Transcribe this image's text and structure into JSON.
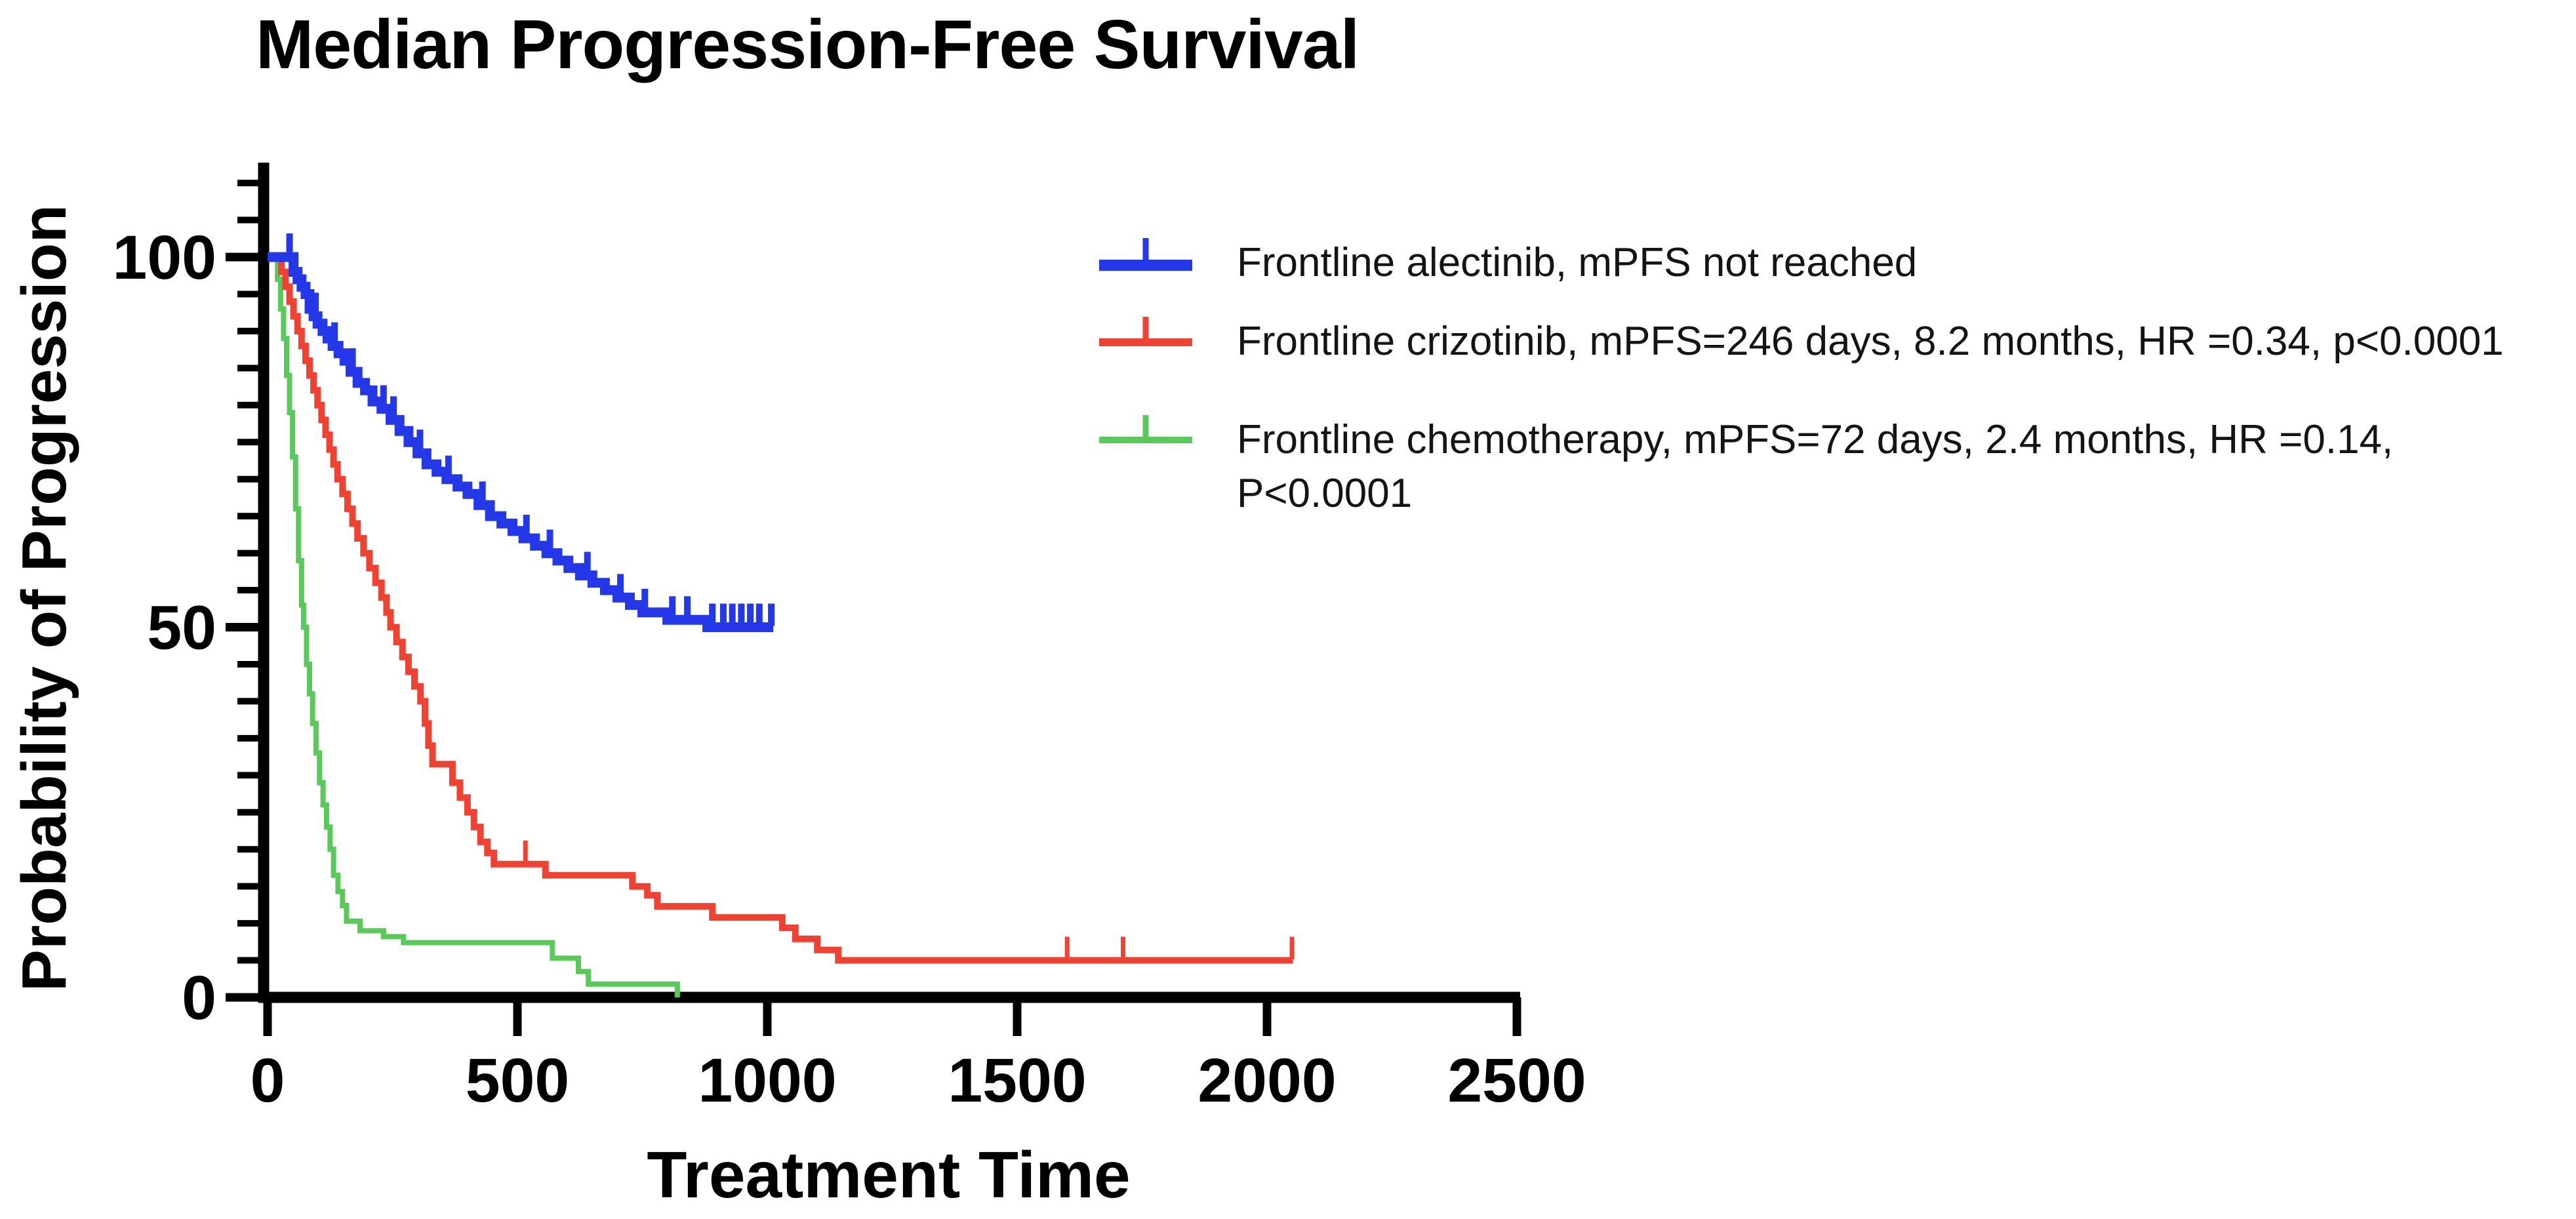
{
  "page": {
    "title": "Median Progression-Free Survival"
  },
  "chart_data": {
    "type": "line",
    "subtype": "kaplan-meier-step",
    "title": "Median Progression-Free Survival",
    "xlabel": "Treatment Time",
    "ylabel": "Probability of Progression",
    "xlim": [
      0,
      2500
    ],
    "ylim": [
      0,
      100
    ],
    "x_ticks": [
      0,
      500,
      1000,
      1500,
      2000,
      2500
    ],
    "y_ticks": [
      0,
      50,
      100
    ],
    "y_minor_tick_step": 5,
    "grid": false,
    "legend_position": "upper-right",
    "axis_color": "#000000",
    "background_color": "#ffffff",
    "series": [
      {
        "name": "Frontline alectinib",
        "legend_label": "Frontline alectinib, mPFS not reached",
        "median_note": "mPFS not reached",
        "color": "#2438e8",
        "line_width": 15,
        "steps": [
          [
            0,
            100
          ],
          [
            52,
            98
          ],
          [
            60,
            97
          ],
          [
            68,
            96
          ],
          [
            76,
            95
          ],
          [
            84,
            93
          ],
          [
            92,
            92
          ],
          [
            100,
            91
          ],
          [
            110,
            90
          ],
          [
            120,
            89
          ],
          [
            130,
            88
          ],
          [
            142,
            87
          ],
          [
            154,
            86
          ],
          [
            166,
            84.5
          ],
          [
            180,
            83
          ],
          [
            195,
            82
          ],
          [
            210,
            80.5
          ],
          [
            228,
            79.5
          ],
          [
            246,
            78
          ],
          [
            264,
            76.5
          ],
          [
            282,
            75
          ],
          [
            300,
            73.5
          ],
          [
            318,
            72
          ],
          [
            338,
            71
          ],
          [
            358,
            70
          ],
          [
            380,
            69
          ],
          [
            400,
            68
          ],
          [
            422,
            66.5
          ],
          [
            445,
            65
          ],
          [
            468,
            64
          ],
          [
            490,
            63
          ],
          [
            512,
            62
          ],
          [
            535,
            61
          ],
          [
            558,
            60
          ],
          [
            580,
            59
          ],
          [
            602,
            58
          ],
          [
            625,
            57
          ],
          [
            650,
            56
          ],
          [
            675,
            55
          ],
          [
            700,
            54
          ],
          [
            725,
            53
          ],
          [
            750,
            52
          ],
          [
            800,
            51
          ],
          [
            880,
            50
          ],
          [
            1012,
            50
          ]
        ],
        "censor_ticks": [
          [
            44,
            100
          ],
          [
            96,
            92
          ],
          [
            134,
            88
          ],
          [
            170,
            84.5
          ],
          [
            232,
            79.5
          ],
          [
            252,
            78
          ],
          [
            305,
            73.5
          ],
          [
            362,
            70
          ],
          [
            430,
            66.5
          ],
          [
            518,
            62
          ],
          [
            565,
            60
          ],
          [
            640,
            57
          ],
          [
            706,
            54
          ],
          [
            755,
            52
          ],
          [
            810,
            51
          ],
          [
            840,
            51
          ],
          [
            890,
            50
          ],
          [
            912,
            50
          ],
          [
            930,
            50
          ],
          [
            948,
            50
          ],
          [
            966,
            50
          ],
          [
            984,
            50
          ],
          [
            1008,
            50
          ]
        ]
      },
      {
        "name": "Frontline crizotinib",
        "legend_label": "Frontline crizotinib, mPFS=246 days, 8.2 months, HR =0.34, p<0.0001",
        "median_days": 246,
        "median_months": 8.2,
        "hazard_ratio": 0.34,
        "p_value": "p<0.0001",
        "color": "#ee4233",
        "line_width": 10,
        "steps": [
          [
            0,
            100
          ],
          [
            28,
            98
          ],
          [
            36,
            96
          ],
          [
            44,
            94
          ],
          [
            52,
            92
          ],
          [
            60,
            90
          ],
          [
            68,
            88
          ],
          [
            76,
            86
          ],
          [
            84,
            84
          ],
          [
            92,
            82
          ],
          [
            100,
            80
          ],
          [
            108,
            78
          ],
          [
            116,
            76
          ],
          [
            124,
            74
          ],
          [
            132,
            72
          ],
          [
            140,
            70
          ],
          [
            150,
            68
          ],
          [
            160,
            66
          ],
          [
            170,
            64
          ],
          [
            180,
            62
          ],
          [
            192,
            60
          ],
          [
            204,
            58
          ],
          [
            216,
            56
          ],
          [
            228,
            54
          ],
          [
            238,
            52
          ],
          [
            246,
            50
          ],
          [
            258,
            48
          ],
          [
            270,
            46
          ],
          [
            282,
            44
          ],
          [
            294,
            42
          ],
          [
            306,
            40
          ],
          [
            315,
            37
          ],
          [
            322,
            34
          ],
          [
            330,
            31.5
          ],
          [
            370,
            29
          ],
          [
            385,
            27
          ],
          [
            400,
            25
          ],
          [
            413,
            23
          ],
          [
            426,
            21
          ],
          [
            440,
            19.5
          ],
          [
            453,
            18
          ],
          [
            556,
            16.5
          ],
          [
            730,
            15
          ],
          [
            760,
            13.8
          ],
          [
            780,
            12.3
          ],
          [
            890,
            10.8
          ],
          [
            1030,
            9.4
          ],
          [
            1056,
            7.9
          ],
          [
            1100,
            6.4
          ],
          [
            1142,
            5
          ],
          [
            2052,
            5
          ]
        ],
        "censor_ticks": [
          [
            516,
            18
          ],
          [
            1600,
            5
          ],
          [
            1712,
            5
          ],
          [
            2050,
            5
          ]
        ]
      },
      {
        "name": "Frontline chemotherapy",
        "legend_label": "Frontline chemotherapy, mPFS=72 days, 2.4 months, HR =0.14,",
        "legend_label_line2": "P<0.0001",
        "median_days": 72,
        "median_months": 2.4,
        "hazard_ratio": 0.14,
        "p_value": "P<0.0001",
        "color": "#5bc85c",
        "line_width": 8,
        "steps": [
          [
            0,
            100
          ],
          [
            20,
            97
          ],
          [
            26,
            93
          ],
          [
            32,
            89
          ],
          [
            38,
            84
          ],
          [
            44,
            79
          ],
          [
            50,
            73
          ],
          [
            56,
            66
          ],
          [
            62,
            59
          ],
          [
            68,
            53
          ],
          [
            72,
            50
          ],
          [
            78,
            45
          ],
          [
            84,
            41
          ],
          [
            90,
            37
          ],
          [
            97,
            33
          ],
          [
            104,
            29
          ],
          [
            111,
            26
          ],
          [
            118,
            23
          ],
          [
            125,
            20
          ],
          [
            132,
            16.5
          ],
          [
            141,
            14.3
          ],
          [
            150,
            12.4
          ],
          [
            158,
            10.3
          ],
          [
            185,
            9
          ],
          [
            232,
            8.2
          ],
          [
            272,
            7.4
          ],
          [
            570,
            5.3
          ],
          [
            622,
            3.5
          ],
          [
            642,
            1.8
          ],
          [
            820,
            0
          ]
        ],
        "censor_ticks": []
      }
    ]
  },
  "legend_rows": [
    {
      "top": 360
    },
    {
      "top": 480
    },
    {
      "top": 630
    }
  ]
}
